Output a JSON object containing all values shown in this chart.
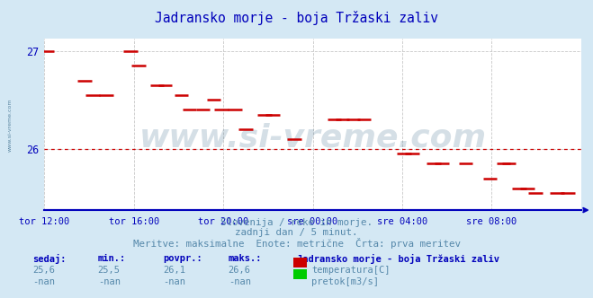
{
  "title": "Jadransko morje - boja Tržaski zaliv",
  "bg_color": "#d4e8f4",
  "plot_bg_color": "#ffffff",
  "grid_color": "#c8c8c8",
  "axis_color": "#0000bb",
  "text_color": "#5588aa",
  "x_labels": [
    "tor 12:00",
    "tor 16:00",
    "tor 20:00",
    "sre 00:00",
    "sre 04:00",
    "sre 08:00"
  ],
  "x_ticks_norm": [
    0.0,
    0.1667,
    0.3333,
    0.5,
    0.6667,
    0.8333
  ],
  "ylim": [
    25.375,
    27.125
  ],
  "yticks": [
    26.0,
    27.0
  ],
  "hline_y": 26.0,
  "hline_color": "#cc0000",
  "line_color": "#cc0000",
  "subtitle1": "Slovenija / reke in morje.",
  "subtitle2": "zadnji dan / 5 minut.",
  "subtitle3": "Meritve: maksimalne  Enote: metrične  Črta: prva meritev",
  "legend_title": "Jadransko morje - boja Tržaski zaliv",
  "legend_items": [
    {
      "label": "temperatura[C]",
      "color": "#cc0000"
    },
    {
      "label": "pretok[m3/s]",
      "color": "#00cc00"
    }
  ],
  "stats_headers": [
    "sedaj:",
    "min.:",
    "povpr.:",
    "maks.:"
  ],
  "stats_temp": [
    "25,6",
    "25,5",
    "26,1",
    "26,6"
  ],
  "stats_flow": [
    "-nan",
    "-nan",
    "-nan",
    "-nan"
  ],
  "watermark": "www.si-vreme.com",
  "watermark_color": "#1a5276",
  "watermark_alpha": 0.18,
  "temp_data": [
    [
      0.005,
      27.0
    ],
    [
      0.075,
      26.7
    ],
    [
      0.09,
      26.55
    ],
    [
      0.115,
      26.55
    ],
    [
      0.16,
      27.0
    ],
    [
      0.175,
      26.85
    ],
    [
      0.21,
      26.65
    ],
    [
      0.225,
      26.65
    ],
    [
      0.255,
      26.55
    ],
    [
      0.27,
      26.4
    ],
    [
      0.295,
      26.4
    ],
    [
      0.315,
      26.5
    ],
    [
      0.33,
      26.4
    ],
    [
      0.355,
      26.4
    ],
    [
      0.375,
      26.2
    ],
    [
      0.41,
      26.35
    ],
    [
      0.425,
      26.35
    ],
    [
      0.465,
      26.1
    ],
    [
      0.54,
      26.3
    ],
    [
      0.555,
      26.3
    ],
    [
      0.575,
      26.3
    ],
    [
      0.595,
      26.3
    ],
    [
      0.67,
      25.95
    ],
    [
      0.685,
      25.95
    ],
    [
      0.725,
      25.85
    ],
    [
      0.74,
      25.85
    ],
    [
      0.785,
      25.85
    ],
    [
      0.83,
      25.7
    ],
    [
      0.855,
      25.85
    ],
    [
      0.865,
      25.85
    ],
    [
      0.885,
      25.6
    ],
    [
      0.9,
      25.6
    ],
    [
      0.915,
      25.55
    ],
    [
      0.955,
      25.55
    ],
    [
      0.975,
      25.55
    ]
  ]
}
